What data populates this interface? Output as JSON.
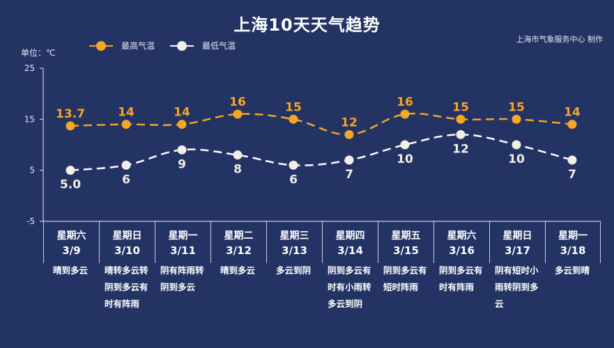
{
  "title": "上海10天天气趋势",
  "credit": "上海市气象服务中心 制作",
  "unit_label": "单位：℃",
  "legend": {
    "high": {
      "label": "最高气温",
      "color": "#f5a623"
    },
    "low": {
      "label": "最低气温",
      "color": "#f2eee6"
    }
  },
  "colors": {
    "background": "#233364",
    "high": "#f5a623",
    "low": "#f2eee6",
    "axis": "#c9cfe0"
  },
  "y_axis": {
    "ticks": [
      "25",
      "15",
      "5",
      "-5"
    ]
  },
  "days": [
    {
      "dow": "星期六",
      "date": "3/9",
      "desc": "晴到多云",
      "high": "13.7",
      "low": "5.0"
    },
    {
      "dow": "星期日",
      "date": "3/10",
      "desc": "晴转多云转阴到多云有时有阵雨",
      "high": "14",
      "low": "6"
    },
    {
      "dow": "星期一",
      "date": "3/11",
      "desc": "阴有阵雨转阴到多云",
      "high": "14",
      "low": "9"
    },
    {
      "dow": "星期二",
      "date": "3/12",
      "desc": "晴到多云",
      "high": "16",
      "low": "8"
    },
    {
      "dow": "星期三",
      "date": "3/13",
      "desc": "多云到阴",
      "high": "15",
      "low": "6"
    },
    {
      "dow": "星期四",
      "date": "3/14",
      "desc": "阴到多云有时有小雨转多云到阴",
      "high": "12",
      "low": "7"
    },
    {
      "dow": "星期五",
      "date": "3/15",
      "desc": "阴到多云有短时阵雨",
      "high": "16",
      "low": "10"
    },
    {
      "dow": "星期六",
      "date": "3/16",
      "desc": "阴到多云有时有阵雨",
      "high": "15",
      "low": "12"
    },
    {
      "dow": "星期日",
      "date": "3/17",
      "desc": "阴有短时小雨转阴到多云",
      "high": "15",
      "low": "10"
    },
    {
      "dow": "星期一",
      "date": "3/18",
      "desc": "多云到晴",
      "high": "14",
      "low": "7"
    }
  ],
  "chart_data": {
    "type": "line",
    "title": "上海10天天气趋势",
    "xlabel": "",
    "ylabel": "单位：℃",
    "ylim": [
      -5,
      25
    ],
    "yticks": [
      -5,
      5,
      15,
      25
    ],
    "grid": false,
    "legend_position": "top",
    "categories": [
      "星期六 3/9",
      "星期日 3/10",
      "星期一 3/11",
      "星期二 3/12",
      "星期三 3/13",
      "星期四 3/14",
      "星期五 3/15",
      "星期六 3/16",
      "星期日 3/17",
      "星期一 3/18"
    ],
    "series": [
      {
        "name": "最高气温",
        "values": [
          13.7,
          14,
          14,
          16,
          15,
          12,
          16,
          15,
          15,
          14
        ],
        "color": "#f5a623",
        "style": "dashed"
      },
      {
        "name": "最低气温",
        "values": [
          5.0,
          6,
          9,
          8,
          6,
          7,
          10,
          12,
          10,
          7
        ],
        "color": "#f2eee6",
        "style": "dashed"
      }
    ]
  }
}
